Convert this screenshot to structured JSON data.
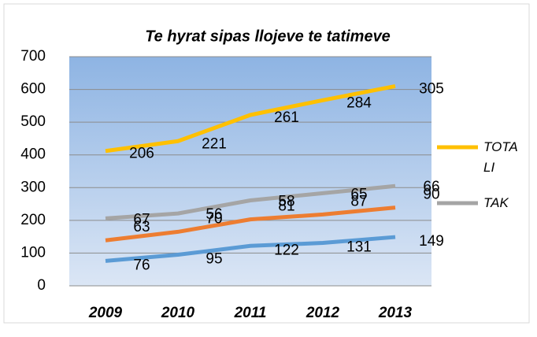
{
  "chart_data": {
    "type": "stacked-line",
    "title": "Te hyrat sipas llojeve te tatimeve",
    "categories": [
      "2009",
      "2010",
      "2011",
      "2012",
      "2013"
    ],
    "series": [
      {
        "color": "#5b9bd5",
        "values": [
          76,
          95,
          122,
          131,
          149
        ]
      },
      {
        "color": "#ed7d31",
        "values": [
          63,
          70,
          81,
          87,
          90
        ]
      },
      {
        "name": "TAK",
        "color": "#a5a5a5",
        "values": [
          67,
          56,
          58,
          65,
          66
        ]
      },
      {
        "name": "TOTALI",
        "color": "#ffc000",
        "values": [
          206,
          221,
          261,
          284,
          305
        ]
      }
    ],
    "ylim": [
      0,
      700
    ],
    "yticks": [
      0,
      100,
      200,
      300,
      400,
      500,
      600,
      700
    ],
    "grid": true,
    "legend": "right"
  }
}
